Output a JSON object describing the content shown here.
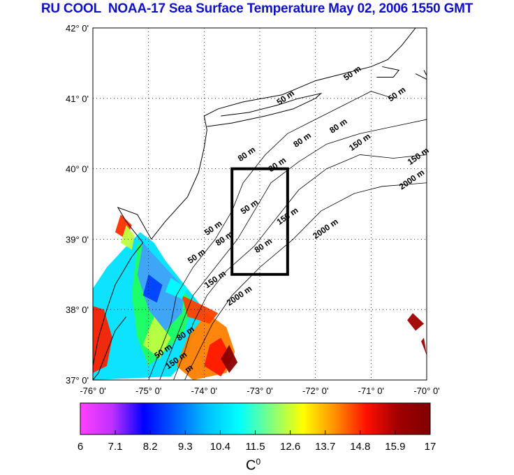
{
  "title": "RU COOL  NOAA-17 Sea Surface Temperature May 02, 2006 1550 GMT",
  "map": {
    "lat_ticks": [
      "42° 0'",
      "41° 0'",
      "40° 0'",
      "39° 0'",
      "38° 0'",
      "37° 0'"
    ],
    "lat_values": [
      42,
      41,
      40,
      39,
      38,
      37
    ],
    "lon_ticks": [
      "-76° 0'",
      "-75° 0'",
      "-74° 0'",
      "-73° 0'",
      "-72° 0'",
      "-71° 0'",
      "-70° 0'"
    ],
    "lon_values": [
      -76,
      -75,
      -74,
      -73,
      -72,
      -71,
      -70
    ],
    "lat_range": [
      37,
      42
    ],
    "lon_range": [
      -76,
      -70
    ],
    "grid": "dotted",
    "study_box": {
      "lon": [
        -73.5,
        -72.5
      ],
      "lat": [
        38.5,
        40.0
      ]
    },
    "contour_labels": [
      {
        "text": "50 m",
        "lon": -71.45,
        "lat": 41.25
      },
      {
        "text": "50 m",
        "lon": -70.65,
        "lat": 40.95
      },
      {
        "text": "50 m",
        "lon": -72.65,
        "lat": 40.9
      },
      {
        "text": "80 m",
        "lon": -71.7,
        "lat": 40.5
      },
      {
        "text": "80 m",
        "lon": -72.35,
        "lat": 40.3
      },
      {
        "text": "150 m",
        "lon": -71.35,
        "lat": 40.25
      },
      {
        "text": "150 m",
        "lon": -70.3,
        "lat": 40.05
      },
      {
        "text": "80 m",
        "lon": -73.35,
        "lat": 40.1
      },
      {
        "text": "80 m",
        "lon": -72.8,
        "lat": 39.95
      },
      {
        "text": "2000 m",
        "lon": -70.45,
        "lat": 39.7
      },
      {
        "text": "50 m",
        "lon": -73.3,
        "lat": 39.35
      },
      {
        "text": "150 m",
        "lon": -72.65,
        "lat": 39.2
      },
      {
        "text": "2000 m",
        "lon": -72.0,
        "lat": 39.0
      },
      {
        "text": "50 m",
        "lon": -73.95,
        "lat": 39.05
      },
      {
        "text": "80 m",
        "lon": -73.75,
        "lat": 38.9
      },
      {
        "text": "80 m",
        "lon": -73.05,
        "lat": 38.8
      },
      {
        "text": "50 m",
        "lon": -74.25,
        "lat": 38.65
      },
      {
        "text": "150 m",
        "lon": -73.95,
        "lat": 38.3
      },
      {
        "text": "2000 m",
        "lon": -73.55,
        "lat": 38.05
      },
      {
        "text": "80 m",
        "lon": -74.45,
        "lat": 37.55
      },
      {
        "text": "50 m",
        "lon": -74.85,
        "lat": 37.3
      },
      {
        "text": "150 m",
        "lon": -74.65,
        "lat": 37.15
      },
      {
        "text": "m",
        "lon": -74.3,
        "lat": 37.1
      }
    ]
  },
  "colorbar": {
    "ticks": [
      "6",
      "7.1",
      "8.2",
      "9.3",
      "10.4",
      "11.5",
      "12.6",
      "13.7",
      "14.8",
      "15.9",
      "17"
    ],
    "range": [
      6,
      17
    ],
    "unit": "C",
    "unit_sup": "0",
    "colors": [
      "#ff40ff",
      "#c030ff",
      "#0000ff",
      "#0060ff",
      "#00c0ff",
      "#00ffff",
      "#80ff80",
      "#ffff00",
      "#ff9000",
      "#ff1000",
      "#a00000",
      "#800000"
    ]
  }
}
